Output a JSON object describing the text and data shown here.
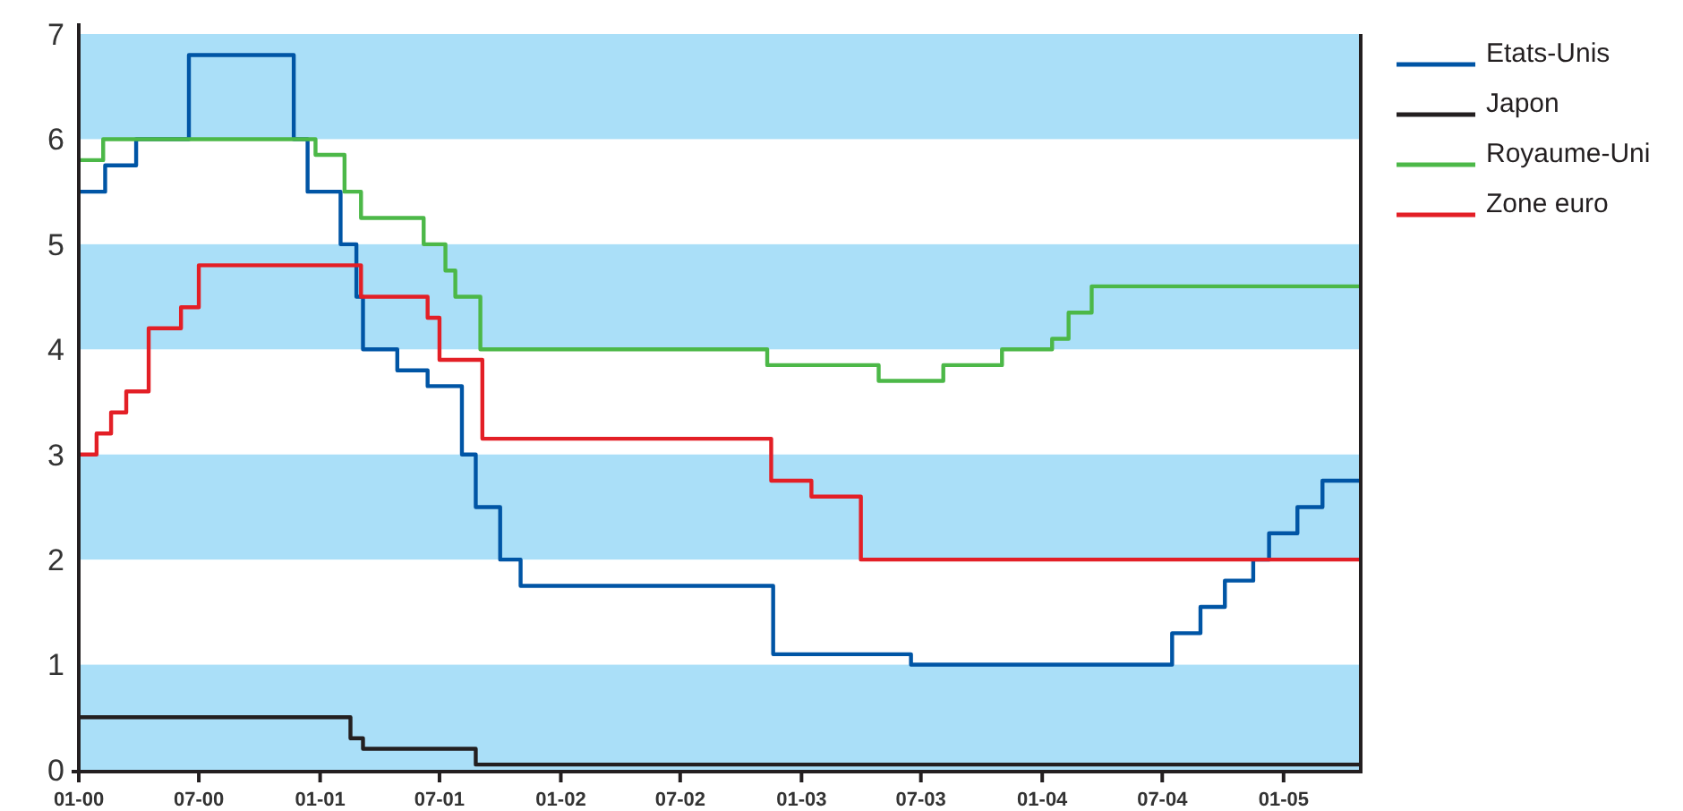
{
  "chart_data": {
    "type": "step",
    "xlim": [
      "2000-01-01",
      "2005-04-28"
    ],
    "xticks": [
      {
        "value": "2000-01",
        "label": "01-00"
      },
      {
        "value": "2000-07",
        "label": "07-00"
      },
      {
        "value": "2001-01",
        "label": "01-01"
      },
      {
        "value": "2001-07",
        "label": "07-01"
      },
      {
        "value": "2002-01",
        "label": "01-02"
      },
      {
        "value": "2002-07",
        "label": "07-02"
      },
      {
        "value": "2003-01",
        "label": "01-03"
      },
      {
        "value": "2003-07",
        "label": "07-03"
      },
      {
        "value": "2004-01",
        "label": "01-04"
      },
      {
        "value": "2004-07",
        "label": "07-04"
      },
      {
        "value": "2005-01",
        "label": "01-05"
      }
    ],
    "ylim": [
      0,
      7
    ],
    "yticks": [
      0,
      1,
      2,
      3,
      4,
      5,
      6,
      7
    ],
    "grid": false,
    "legend": "top right",
    "bands": [
      {
        "axis": "y",
        "from": 0,
        "to": 1,
        "color": "#aadff8"
      },
      {
        "axis": "y",
        "from": 2,
        "to": 3,
        "color": "#aadff8"
      },
      {
        "axis": "y",
        "from": 4,
        "to": 5,
        "color": "#aadff8"
      },
      {
        "axis": "y",
        "from": 6,
        "to": 7,
        "color": "#aadff8"
      }
    ],
    "series": [
      {
        "name": "Etats-Unis",
        "color": "#0055a5",
        "x": [
          "2000-01-01",
          "2000-02-10",
          "2000-03-28",
          "2000-06-16",
          "2000-11-22",
          "2000-12-13",
          "2001-02-01",
          "2001-02-25",
          "2001-03-07",
          "2001-04-28",
          "2001-06-13",
          "2001-08-04",
          "2001-08-25",
          "2001-10-01",
          "2001-11-01",
          "2002-11-19",
          "2003-06-16",
          "2004-07-16",
          "2004-08-28",
          "2004-10-04",
          "2004-11-16",
          "2004-12-10",
          "2005-01-22",
          "2005-03-01",
          "2005-04-28"
        ],
        "values": [
          5.5,
          5.75,
          6.0,
          6.8,
          6.0,
          5.5,
          5.0,
          4.5,
          4.0,
          3.8,
          3.65,
          3.0,
          2.5,
          2.0,
          1.75,
          1.1,
          1.0,
          1.3,
          1.55,
          1.8,
          2.0,
          2.25,
          2.5,
          2.75,
          2.75
        ]
      },
      {
        "name": "Japon",
        "color": "#231f20",
        "x": [
          "2000-01-01",
          "2001-02-16",
          "2001-03-07",
          "2001-08-25",
          "2005-04-28"
        ],
        "values": [
          0.5,
          0.3,
          0.2,
          0.05,
          0.05
        ]
      },
      {
        "name": "Royaume-Uni",
        "color": "#4cb848",
        "x": [
          "2000-01-01",
          "2000-02-07",
          "2000-12-25",
          "2001-02-07",
          "2001-03-04",
          "2001-06-07",
          "2001-07-10",
          "2001-07-25",
          "2001-09-01",
          "2002-11-10",
          "2003-04-28",
          "2003-08-04",
          "2003-11-01",
          "2004-01-16",
          "2004-02-10",
          "2004-03-16",
          "2005-04-28"
        ],
        "values": [
          5.8,
          6.0,
          5.85,
          5.5,
          5.25,
          5.0,
          4.75,
          4.5,
          4.0,
          3.85,
          3.7,
          3.85,
          4.0,
          4.1,
          4.35,
          4.6,
          4.6
        ]
      },
      {
        "name": "Zone euro",
        "color": "#e31f26",
        "x": [
          "2000-01-01",
          "2000-01-28",
          "2000-02-19",
          "2000-03-13",
          "2000-04-16",
          "2000-06-04",
          "2000-07-01",
          "2001-03-04",
          "2001-06-13",
          "2001-07-01",
          "2001-09-04",
          "2002-11-16",
          "2003-01-16",
          "2003-04-01",
          "2005-04-28"
        ],
        "values": [
          3.0,
          3.2,
          3.4,
          3.6,
          4.2,
          4.4,
          4.8,
          4.5,
          4.3,
          3.9,
          3.15,
          2.75,
          2.6,
          2.0,
          2.0
        ]
      }
    ]
  }
}
